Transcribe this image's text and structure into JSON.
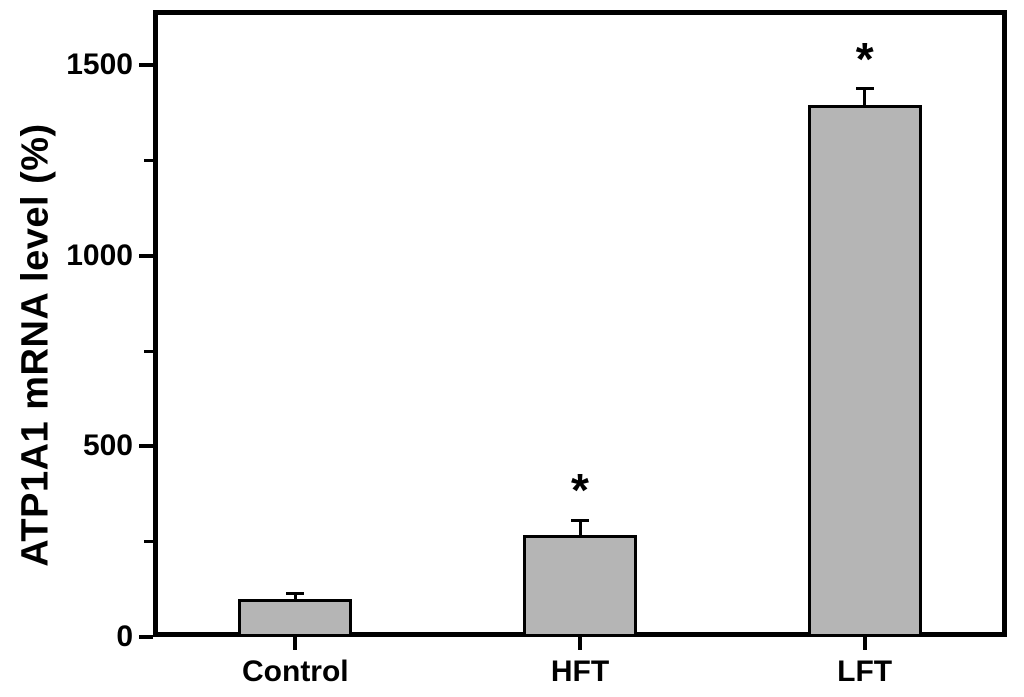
{
  "figure": {
    "background_color": "#ffffff",
    "frame_color": "#000000"
  },
  "chart_data": {
    "type": "bar",
    "title": "",
    "xlabel": "",
    "ylabel": "ATP1A1 mRNA level (%)",
    "categories": [
      "Control",
      "HFT",
      "LFT"
    ],
    "values": [
      100,
      268,
      1395
    ],
    "errors_plus": [
      13,
      38,
      43
    ],
    "significance": [
      "",
      "*",
      "*"
    ],
    "ylim": [
      0,
      1645
    ],
    "yticks": [
      0,
      500,
      1000,
      1500
    ],
    "yticks_minor": [
      250,
      750,
      1250
    ],
    "grid": false,
    "legend": false,
    "bar_fill_color": "#b5b5b5",
    "bar_border_color": "#000000",
    "error_bar_color": "#000000"
  }
}
